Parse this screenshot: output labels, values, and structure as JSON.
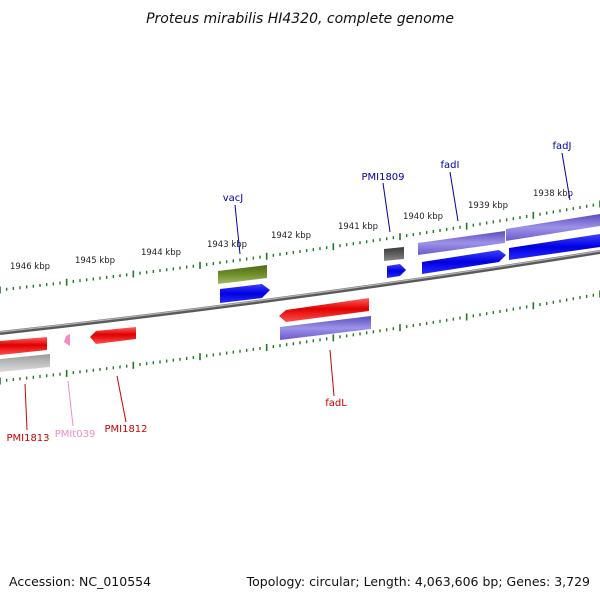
{
  "title": "Proteus mirabilis HI4320, complete genome",
  "footer": {
    "accession": "Accession: NC_010554",
    "summary": "Topology: circular; Length: 4,063,606 bp; Genes: 3,729"
  },
  "colors": {
    "backbone": "#7a7a7a",
    "tick": "#1f7a1f",
    "gene_red": "#e00000",
    "gene_blue": "#0000e0",
    "gene_purple": "#6a5acd",
    "gene_olive": "#5f7f1f",
    "gene_gray": "#555555",
    "gene_pink": "#f08cc8",
    "gene_lightgray": "#b0b0b0"
  },
  "ticks": {
    "outer_labels": [
      "1946 kbp",
      "1945 kbp",
      "1944 kbp",
      "1943 kbp",
      "1942 kbp",
      "1941 kbp",
      "1940 kbp",
      "1939 kbp",
      "1938 kbp"
    ]
  },
  "gene_labels": {
    "vacJ": "vacJ",
    "PMI1809": "PMI1809",
    "fadI": "fadI",
    "fadJ": "fadJ",
    "fadL": "fadL",
    "PMI1813": "PMI1813",
    "PMIt039": "PMIt039",
    "PMI1812": "PMI1812"
  }
}
